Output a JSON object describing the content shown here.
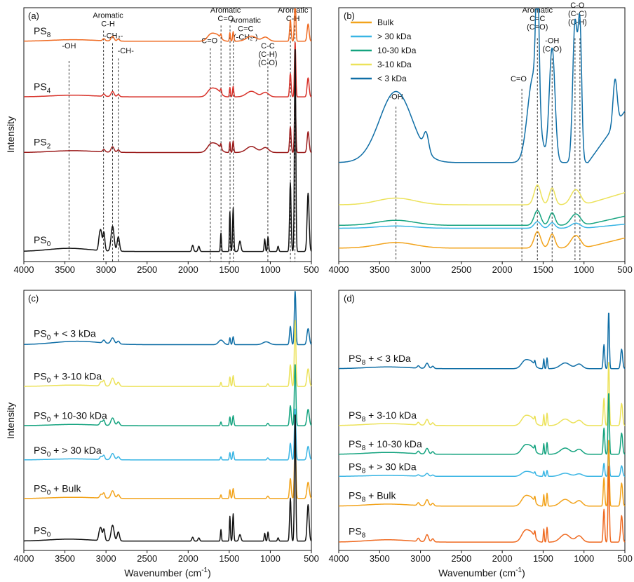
{
  "figure": {
    "y_axis_label": "Intensity",
    "x_axis_label_main": "Wavenumber (cm",
    "x_axis_label_sup": "-1",
    "x_axis_label_end": ")"
  },
  "colors": {
    "PS0": "#111111",
    "PS2": "#9b1b1b",
    "PS4": "#d8322a",
    "PS8": "#ef6a21",
    "bulk": "#f2a31b",
    "gt30": "#39b5e4",
    "k10_30": "#14a37f",
    "k3_10": "#ece25a",
    "lt3": "#0f6ea6"
  },
  "chart_data": [
    {
      "panel": "(a)",
      "type": "line",
      "xlim": [
        4000,
        500
      ],
      "xticks": [
        "4000",
        "3500",
        "3000",
        "2500",
        "2000",
        "1500",
        "1000",
        "500"
      ],
      "ylabel": "Intensity",
      "series": [
        {
          "name": "PS8",
          "label_main": "PS",
          "label_sub": "8",
          "color_key": "PS8",
          "profile": "PS",
          "offset": 0.86,
          "scale": 0.2
        },
        {
          "name": "PS4",
          "label_main": "PS",
          "label_sub": "4",
          "color_key": "PS4",
          "profile": "PS",
          "offset": 0.64,
          "scale": 0.22
        },
        {
          "name": "PS2",
          "label_main": "PS",
          "label_sub": "2",
          "color_key": "PS2",
          "profile": "PS",
          "offset": 0.42,
          "scale": 0.24
        },
        {
          "name": "PS0",
          "label_main": "PS",
          "label_sub": "0",
          "color_key": "PS0",
          "profile": "PS0",
          "offset": 0.03,
          "scale": 0.82
        }
      ],
      "reference_lines": [
        {
          "x": 3450,
          "top": 0.79
        },
        {
          "x": 3030,
          "top": 0.91
        },
        {
          "x": 2920,
          "top": 0.86
        },
        {
          "x": 2850,
          "top": 0.8
        },
        {
          "x": 1730,
          "top": 0.84
        },
        {
          "x": 1600,
          "top": 0.93
        },
        {
          "x": 1490,
          "top": 0.93
        },
        {
          "x": 1450,
          "top": 0.87
        },
        {
          "x": 1030,
          "top": 0.8
        },
        {
          "x": 755,
          "top": 0.93
        },
        {
          "x": 700,
          "top": 0.93
        }
      ],
      "annotations": [
        {
          "lines": [
            "-OH"
          ],
          "x": 3450,
          "y": 0.84
        },
        {
          "lines": [
            "Aromatic",
            "C-H"
          ],
          "x": 2975,
          "y": 0.96
        },
        {
          "lines": [
            "-CH₂-"
          ],
          "x": 2910,
          "y": 0.88
        },
        {
          "lines": [
            "-CH-"
          ],
          "x": 2760,
          "y": 0.82
        },
        {
          "lines": [
            "C=O"
          ],
          "x": 1740,
          "y": 0.86
        },
        {
          "lines": [
            "Aromatic",
            "C=C"
          ],
          "x": 1545,
          "y": 0.98
        },
        {
          "lines": [
            "Aromatic",
            "C=C",
            "(-CH₂-)"
          ],
          "x": 1300,
          "y": 0.94
        },
        {
          "lines": [
            "C-C",
            "(C-H)",
            "(C-O)"
          ],
          "x": 1030,
          "y": 0.84
        },
        {
          "lines": [
            "Aromatic",
            "C-H"
          ],
          "x": 725,
          "y": 0.98
        }
      ]
    },
    {
      "panel": "(b)",
      "type": "line",
      "xlim": [
        4000,
        500
      ],
      "xticks": [
        "4000",
        "3500",
        "3000",
        "2500",
        "2000",
        "1500",
        "1000",
        "500"
      ],
      "legend_position": "top-left",
      "series": [
        {
          "name": "Bulk",
          "label": "Bulk",
          "color_key": "bulk",
          "profile": "DOM",
          "offset": 0.05,
          "scale": 0.1
        },
        {
          "name": "> 30 kDa",
          "label": "> 30 kDa",
          "color_key": "gt30",
          "profile": "DOM",
          "offset": 0.13,
          "scale": 0.04
        },
        {
          "name": "10-30 kDa",
          "label": "10-30 kDa",
          "color_key": "k10_30",
          "profile": "DOM",
          "offset": 0.14,
          "scale": 0.09
        },
        {
          "name": "3-10 kDa",
          "label": "3-10 kDa",
          "color_key": "k3_10",
          "profile": "DOM",
          "offset": 0.22,
          "scale": 0.12
        },
        {
          "name": "< 3 kDa",
          "label": "< 3 kDa",
          "color_key": "lt3",
          "profile": "LT3",
          "offset": 0.36,
          "scale": 1.0
        }
      ],
      "reference_lines": [
        {
          "x": 3300,
          "top": 0.61
        },
        {
          "x": 1760,
          "top": 0.68
        },
        {
          "x": 1570,
          "top": 0.88
        },
        {
          "x": 1390,
          "top": 0.8
        },
        {
          "x": 1110,
          "top": 0.88
        },
        {
          "x": 1050,
          "top": 0.88
        }
      ],
      "annotations": [
        {
          "lines": [
            "-OH"
          ],
          "x": 3300,
          "y": 0.64
        },
        {
          "lines": [
            "C=O"
          ],
          "x": 1800,
          "y": 0.71
        },
        {
          "lines": [
            "Aromatic",
            "C=C",
            "(C=O)"
          ],
          "x": 1570,
          "y": 0.98
        },
        {
          "lines": [
            "-OH",
            "(C-O)"
          ],
          "x": 1390,
          "y": 0.86
        },
        {
          "lines": [
            "C-O",
            "(C-C)",
            "(C-H)"
          ],
          "x": 1080,
          "y": 1.0
        }
      ]
    },
    {
      "panel": "(c)",
      "type": "line",
      "xlim": [
        4000,
        500
      ],
      "xticks": [
        "4000",
        "3500",
        "3000",
        "2500",
        "2000",
        "1500",
        "1000",
        "500"
      ],
      "ylabel": "Intensity",
      "series": [
        {
          "name": "PS0 + < 3 kDa",
          "label_main": "PS",
          "label_sub": "0",
          "label_rest": " + < 3 kDa",
          "color_key": "lt3",
          "profile": "PSDOM",
          "offset": 0.78,
          "scale": 0.22
        },
        {
          "name": "PS0 + 3-10 kDa",
          "label_main": "PS",
          "label_sub": "0",
          "label_rest": " + 3-10 kDa",
          "color_key": "k3_10",
          "profile": "PS0b",
          "offset": 0.62,
          "scale": 0.26
        },
        {
          "name": "PS0 + 10-30 kDa",
          "label_main": "PS",
          "label_sub": "0",
          "label_rest": " + 10-30 kDa",
          "color_key": "k10_30",
          "profile": "PS0b",
          "offset": 0.47,
          "scale": 0.24
        },
        {
          "name": "PS0 + > 30 kDa",
          "label_main": "PS",
          "label_sub": "0",
          "label_rest": " + > 30 kDa",
          "color_key": "gt30",
          "profile": "PS0b",
          "offset": 0.34,
          "scale": 0.2
        },
        {
          "name": "PS0 + Bulk",
          "label_main": "PS",
          "label_sub": "0",
          "label_rest": " + Bulk",
          "color_key": "bulk",
          "profile": "PS0b",
          "offset": 0.19,
          "scale": 0.24
        },
        {
          "name": "PS0",
          "label_main": "PS",
          "label_sub": "0",
          "label_rest": "",
          "color_key": "PS0",
          "profile": "PS0",
          "offset": 0.03,
          "scale": 0.5
        }
      ]
    },
    {
      "panel": "(d)",
      "type": "line",
      "xlim": [
        4000,
        500
      ],
      "xticks": [
        "4000",
        "3500",
        "3000",
        "2500",
        "2000",
        "1500",
        "1000",
        "500"
      ],
      "series": [
        {
          "name": "PS8 + < 3 kDa",
          "label_main": "PS",
          "label_sub": "8",
          "label_rest": " + < 3 kDa",
          "color_key": "lt3",
          "profile": "PS",
          "offset": 0.69,
          "scale": 0.22
        },
        {
          "name": "PS8 + 3-10 kDa",
          "label_main": "PS",
          "label_sub": "8",
          "label_rest": " + 3-10 kDa",
          "color_key": "k3_10",
          "profile": "PS",
          "offset": 0.47,
          "scale": 0.25
        },
        {
          "name": "PS8 + 10-30 kDa",
          "label_main": "PS",
          "label_sub": "8",
          "label_rest": " + 10-30 kDa",
          "color_key": "k10_30",
          "profile": "PS",
          "offset": 0.36,
          "scale": 0.24
        },
        {
          "name": "PS8 + > 30 kDa",
          "label_main": "PS",
          "label_sub": "8",
          "label_rest": " + > 30 kDa",
          "color_key": "gt30",
          "profile": "PS",
          "offset": 0.28,
          "scale": 0.12
        },
        {
          "name": "PS8 + Bulk",
          "label_main": "PS",
          "label_sub": "8",
          "label_rest": " + Bulk",
          "color_key": "bulk",
          "profile": "PS",
          "offset": 0.16,
          "scale": 0.26
        },
        {
          "name": "PS8",
          "label_main": "PS",
          "label_sub": "8",
          "label_rest": "",
          "color_key": "PS8",
          "profile": "PS",
          "offset": 0.02,
          "scale": 0.3
        }
      ]
    }
  ]
}
